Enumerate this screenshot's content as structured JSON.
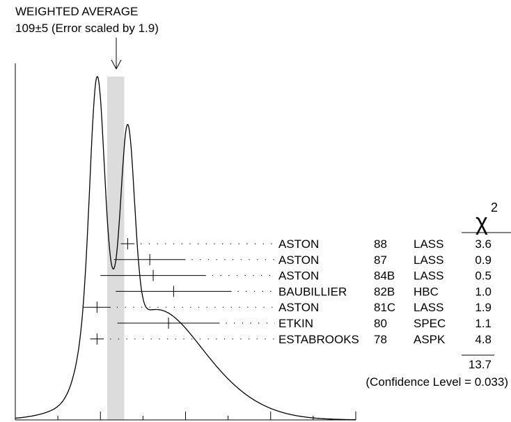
{
  "header": {
    "title": "WEIGHTED AVERAGE",
    "subtitle": "109±5 (Error scaled by 1.9)"
  },
  "chi_header": {
    "symbol": "χ",
    "exponent": "2"
  },
  "chi_total": "13.7",
  "confidence": "(Confidence Level = 0.033)",
  "colors": {
    "band": "#dcdcdc",
    "ink": "#000000"
  },
  "chart_data": {
    "type": "scatter",
    "description_type": "ideogram",
    "weighted_average": {
      "value": 109,
      "error": 5,
      "scale_factor": 1.9
    },
    "xlim": [
      50,
      250
    ],
    "x_ticks": [
      50,
      100,
      150,
      200,
      250
    ],
    "measurements": [
      {
        "author": "ASTON",
        "year": "88",
        "experiment": "LASS",
        "value": 116,
        "error": 4,
        "chi2": "3.6"
      },
      {
        "author": "ASTON",
        "year": "87",
        "experiment": "LASS",
        "value": 129,
        "error": 21,
        "chi2": "0.9"
      },
      {
        "author": "ASTON",
        "year": "84B",
        "experiment": "LASS",
        "value": 131,
        "error": 31,
        "chi2": "0.5"
      },
      {
        "author": "BAUBILLIER",
        "year": "82B",
        "experiment": "HBC",
        "value": 143,
        "error": 34,
        "chi2": "1.0"
      },
      {
        "author": "ASTON",
        "year": "81C",
        "experiment": "LASS",
        "value": 98,
        "error": 8,
        "chi2": "1.9"
      },
      {
        "author": "ETKIN",
        "year": "80",
        "experiment": "SPEC",
        "value": 140,
        "error": 30,
        "chi2": "1.1"
      },
      {
        "author": "ESTABROOKS",
        "year": "78",
        "experiment": "ASPK",
        "value": 98,
        "error": 4,
        "chi2": "4.8"
      }
    ]
  }
}
